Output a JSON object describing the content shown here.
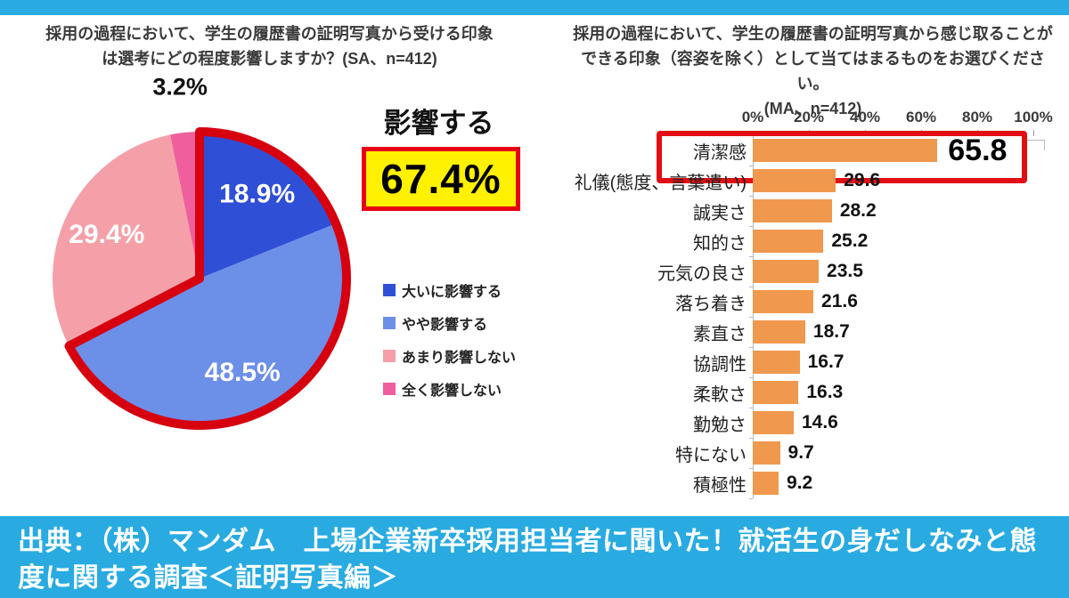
{
  "page": {
    "top_strip_color": "#29ABE2",
    "background": "#FFFFFF"
  },
  "pie_section": {
    "title_lines": [
      "採用の過程において、学生の履歴書の証明写真から受ける印象",
      "は選考にどの程度影響しますか？(SA、n=412)"
    ],
    "highlight": {
      "label": "影響する",
      "value_text": "67.4%",
      "box_bg": "#FFF100",
      "box_border": "#E60012"
    }
  },
  "bar_section": {
    "title_lines": [
      "採用の過程において、学生の履歴書の証明写真から感じ取ることが",
      "できる印象（容姿を除く）として当てはまるものをお選びください。",
      "(MA、n=412)"
    ]
  },
  "source_banner": {
    "text": "出典：（株）マンダム　上場企業新卒採用担当者に聞いた！就活生の身だしなみと態度に関する調査＜証明写真編＞",
    "bg": "#29ABE2",
    "color": "#FFFFFF"
  },
  "chart_data": [
    {
      "type": "pie",
      "title": "採用の過程において、学生の履歴書の証明写真から受ける印象は選考にどの程度影響しますか？(SA、n=412)",
      "labels": [
        "大いに影響する",
        "やや影響する",
        "あまり影響しない",
        "全く影響しない"
      ],
      "values": [
        18.9,
        48.5,
        29.4,
        3.2
      ],
      "colors": [
        "#2F50D6",
        "#6C8FE8",
        "#F5A0A8",
        "#EF5F9D"
      ],
      "start_angle": "top",
      "direction": "clockwise",
      "legend_position": "right",
      "outside_label_index": 3,
      "slice_label_color_inside": "#FFFFFF",
      "slice_label_color_outside": "#111111",
      "highlight_group": {
        "label": "影響する",
        "value": 67.4,
        "slice_indices": [
          0,
          1
        ],
        "outline_color": "#D6000F"
      }
    },
    {
      "type": "bar",
      "orientation": "horizontal",
      "title": "採用の過程において、学生の履歴書の証明写真から感じ取ることができる印象（容姿を除く）として当てはまるものをお選びください。(MA、n=412)",
      "categories": [
        "清潔感",
        "礼儀(態度、言葉遣い)",
        "誠実さ",
        "知的さ",
        "元気の良さ",
        "落ち着き",
        "素直さ",
        "協調性",
        "柔軟さ",
        "勤勉さ",
        "特にない",
        "積極性"
      ],
      "values": [
        65.8,
        29.6,
        28.2,
        25.2,
        23.5,
        21.6,
        18.7,
        16.7,
        16.3,
        14.6,
        9.7,
        9.2
      ],
      "xlim": [
        0,
        100
      ],
      "x_tick_labels": [
        "0%",
        "20%",
        "40%",
        "60%",
        "80%",
        "100%"
      ],
      "grid": false,
      "bar_color": "#F0984E",
      "highlight_index": 0,
      "highlight_box_color": "#E10E12"
    }
  ]
}
